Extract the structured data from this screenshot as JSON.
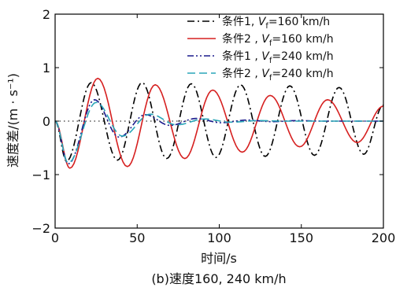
{
  "chart_data": {
    "type": "line",
    "caption": "(b)速度160, 240 km/h",
    "xlabel": "时间/s",
    "ylabel": "速度差/(m · s⁻¹)",
    "xlim": [
      0,
      200
    ],
    "ylim": [
      -2,
      2
    ],
    "xticks": [
      "0",
      "50",
      "100",
      "150",
      "200"
    ],
    "yticks": [
      "−2",
      "−1",
      "0",
      "1",
      "2"
    ],
    "grid": false,
    "legend_position": "top-right",
    "series": [
      {
        "name": "条件1, Vf=160 km/h",
        "legend": {
          "prefix": "条件1, ",
          "var": "V",
          "sub": "f",
          "suffix": "=160 km/h"
        },
        "color": "#000000",
        "style": "dash-dot",
        "x": [
          0,
          7,
          22,
          38,
          53,
          68,
          83,
          98,
          113,
          128,
          143,
          158,
          173,
          188,
          200
        ],
        "y": [
          0,
          -0.75,
          0.72,
          -0.73,
          0.72,
          -0.7,
          0.7,
          -0.68,
          0.68,
          -0.66,
          0.66,
          -0.64,
          0.63,
          -0.62,
          0.3
        ]
      },
      {
        "name": "条件2, Vf=160 km/h",
        "legend": {
          "prefix": "条件2 , ",
          "var": "V",
          "sub": "f",
          "suffix": "=160 km/h"
        },
        "color": "#d62020",
        "style": "solid",
        "x": [
          0,
          9,
          26,
          44,
          61,
          79,
          96,
          114,
          131,
          149,
          166,
          184,
          200
        ],
        "y": [
          0,
          -0.88,
          0.8,
          -0.85,
          0.68,
          -0.7,
          0.58,
          -0.58,
          0.48,
          -0.48,
          0.4,
          -0.4,
          0.28
        ]
      },
      {
        "name": "条件1, Vf=240 km/h",
        "legend": {
          "prefix": "条件1 , ",
          "var": "V",
          "sub": "f",
          "suffix": "=240 km/h"
        },
        "color": "#1a1a8c",
        "style": "dash-dot-dot",
        "x": [
          0,
          8,
          24,
          39,
          55,
          70,
          86,
          101,
          117,
          132,
          148,
          163,
          200
        ],
        "y": [
          0,
          -0.8,
          0.4,
          -0.3,
          0.12,
          -0.08,
          0.05,
          -0.03,
          0.02,
          -0.01,
          0.01,
          0,
          0
        ]
      },
      {
        "name": "条件2, Vf=240 km/h",
        "legend": {
          "prefix": "条件2 , ",
          "var": "V",
          "sub": "f",
          "suffix": "=240 km/h"
        },
        "color": "#2aa6b8",
        "style": "dashed",
        "x": [
          0,
          8,
          25,
          41,
          58,
          74,
          91,
          107,
          124,
          140,
          157,
          200
        ],
        "y": [
          0,
          -0.78,
          0.35,
          -0.28,
          0.13,
          -0.07,
          0.04,
          -0.02,
          0.01,
          0,
          0,
          0
        ]
      }
    ],
    "zero_line": {
      "y": 0,
      "style": "dotted"
    }
  }
}
